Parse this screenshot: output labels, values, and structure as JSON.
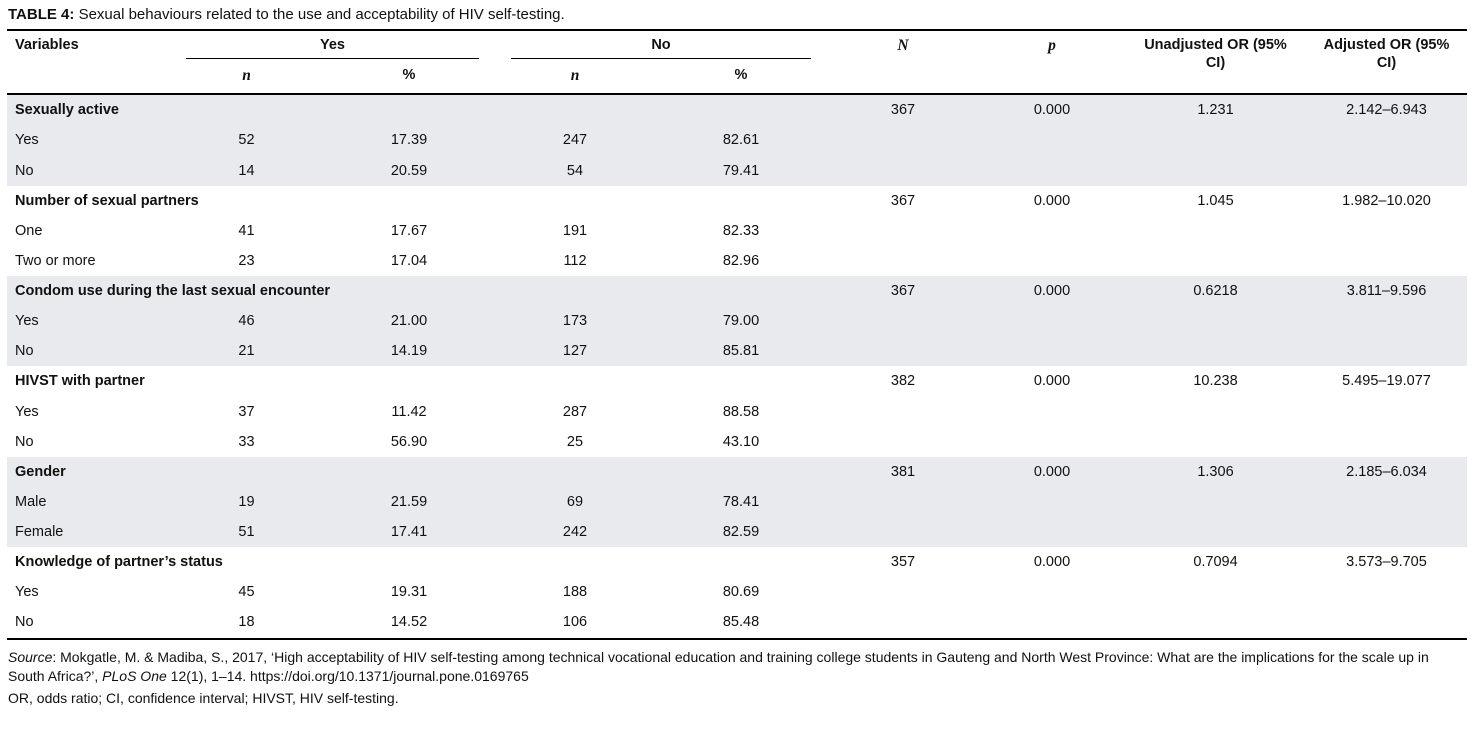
{
  "title": {
    "label": "TABLE 4:",
    "text": "Sexual behaviours related to the use and acceptability of HIV self-testing."
  },
  "table": {
    "headers": {
      "variables": "Variables",
      "yes": "Yes",
      "no": "No",
      "n_sub": "n",
      "pct_sub": "%",
      "N": "N",
      "p": "p",
      "unadjusted_or": "Unadjusted OR (95% CI)",
      "adjusted_or": "Adjusted OR (95% CI)"
    },
    "groups": [
      {
        "label": "Sexually active",
        "N": "367",
        "p": "0.000",
        "unadjusted_or": "1.231",
        "adjusted_or": "2.142–6.943",
        "shaded": true,
        "rows": [
          {
            "label": "Yes",
            "yes_n": "52",
            "yes_pct": "17.39",
            "no_n": "247",
            "no_pct": "82.61"
          },
          {
            "label": "No",
            "yes_n": "14",
            "yes_pct": "20.59",
            "no_n": "54",
            "no_pct": "79.41"
          }
        ]
      },
      {
        "label": "Number of sexual partners",
        "N": "367",
        "p": "0.000",
        "unadjusted_or": "1.045",
        "adjusted_or": "1.982–10.020",
        "shaded": false,
        "rows": [
          {
            "label": "One",
            "yes_n": "41",
            "yes_pct": "17.67",
            "no_n": "191",
            "no_pct": "82.33"
          },
          {
            "label": "Two or more",
            "yes_n": "23",
            "yes_pct": "17.04",
            "no_n": "112",
            "no_pct": "82.96"
          }
        ]
      },
      {
        "label": "Condom use during the last sexual encounter",
        "N": "367",
        "p": "0.000",
        "unadjusted_or": "0.6218",
        "adjusted_or": "3.811–9.596",
        "shaded": true,
        "rows": [
          {
            "label": "Yes",
            "yes_n": "46",
            "yes_pct": "21.00",
            "no_n": "173",
            "no_pct": "79.00"
          },
          {
            "label": "No",
            "yes_n": "21",
            "yes_pct": "14.19",
            "no_n": "127",
            "no_pct": "85.81"
          }
        ]
      },
      {
        "label": "HIVST with partner",
        "N": "382",
        "p": "0.000",
        "unadjusted_or": "10.238",
        "adjusted_or": "5.495–19.077",
        "shaded": false,
        "rows": [
          {
            "label": "Yes",
            "yes_n": "37",
            "yes_pct": "11.42",
            "no_n": "287",
            "no_pct": "88.58"
          },
          {
            "label": "No",
            "yes_n": "33",
            "yes_pct": "56.90",
            "no_n": "25",
            "no_pct": "43.10"
          }
        ]
      },
      {
        "label": "Gender",
        "N": "381",
        "p": "0.000",
        "unadjusted_or": "1.306",
        "adjusted_or": "2.185–6.034",
        "shaded": true,
        "rows": [
          {
            "label": "Male",
            "yes_n": "19",
            "yes_pct": "21.59",
            "no_n": "69",
            "no_pct": "78.41"
          },
          {
            "label": "Female",
            "yes_n": "51",
            "yes_pct": "17.41",
            "no_n": "242",
            "no_pct": "82.59"
          }
        ]
      },
      {
        "label": "Knowledge of partner’s status",
        "N": "357",
        "p": "0.000",
        "unadjusted_or": "0.7094",
        "adjusted_or": "3.573–9.705",
        "shaded": false,
        "rows": [
          {
            "label": "Yes",
            "yes_n": "45",
            "yes_pct": "19.31",
            "no_n": "188",
            "no_pct": "80.69"
          },
          {
            "label": "No",
            "yes_n": "18",
            "yes_pct": "14.52",
            "no_n": "106",
            "no_pct": "85.48"
          }
        ]
      }
    ]
  },
  "footer": {
    "source_label": "Source",
    "source_body": ": Mokgatle, M. & Madiba, S., 2017, ‘High acceptability of HIV self-testing among technical vocational education and training college students in Gauteng and North West Province: What are the implications for the scale up in South Africa?’, ",
    "source_journal": "PLoS One",
    "source_tail": " 12(1), 1–14. https://doi.org/10.1371/journal.pone.0169765",
    "abbreviations": "OR, odds ratio; CI, confidence interval; HIVST, HIV self-testing."
  }
}
